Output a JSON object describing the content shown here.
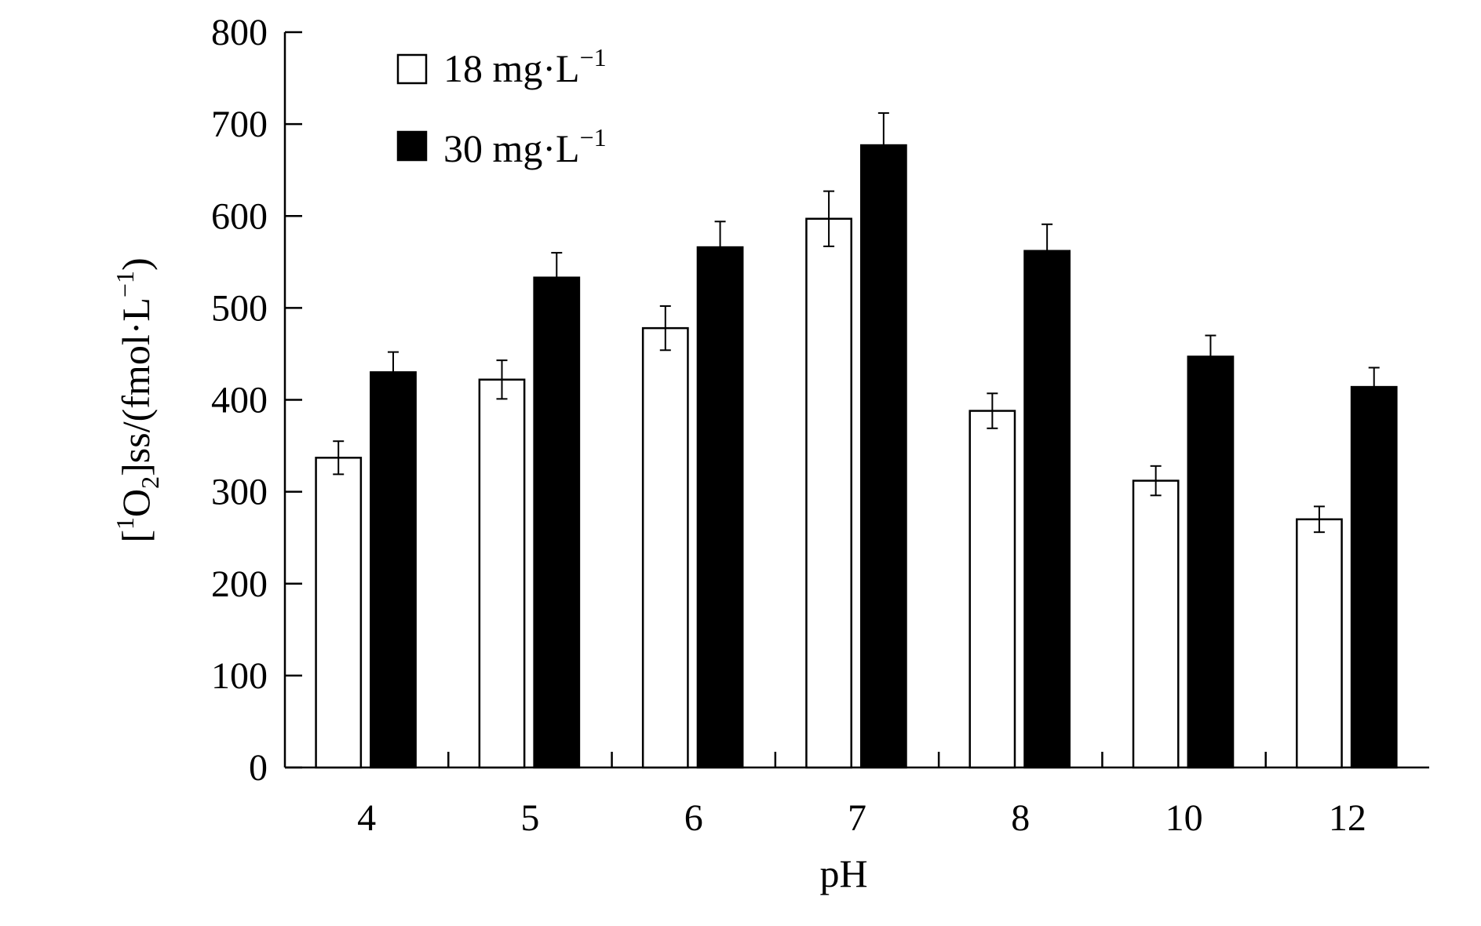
{
  "chart_data": {
    "type": "bar",
    "xlabel": "pH",
    "ylabel": "[¹O₂]ss/(fmol·L⁻¹)",
    "ylabel_parts": {
      "open": "[",
      "sup1": "1",
      "o": "O",
      "sub2": "2",
      "rest1": "]",
      "ss": "ss",
      "rest2": "/(fmol·L",
      "sup2": "−1",
      "close": ")"
    },
    "ylim": [
      0,
      800
    ],
    "yticks": [
      "0",
      "100",
      "200",
      "300",
      "400",
      "500",
      "600",
      "700",
      "800"
    ],
    "categories": [
      "4",
      "5",
      "6",
      "7",
      "8",
      "10",
      "12"
    ],
    "grid": false,
    "legend_position": "top-left",
    "series": [
      {
        "name": "18 mg·L⁻¹",
        "name_base": "18 mg·L",
        "name_sup": "−1",
        "fill": "#ffffff",
        "values": [
          337,
          422,
          478,
          597,
          388,
          312,
          270
        ],
        "errors": [
          18,
          21,
          24,
          30,
          19,
          16,
          14
        ]
      },
      {
        "name": "30 mg·L⁻¹",
        "name_base": "30 mg·L",
        "name_sup": "−1",
        "fill": "#000000",
        "values": [
          430,
          533,
          566,
          677,
          562,
          447,
          414
        ],
        "errors": [
          22,
          27,
          28,
          35,
          29,
          23,
          21
        ]
      }
    ]
  }
}
